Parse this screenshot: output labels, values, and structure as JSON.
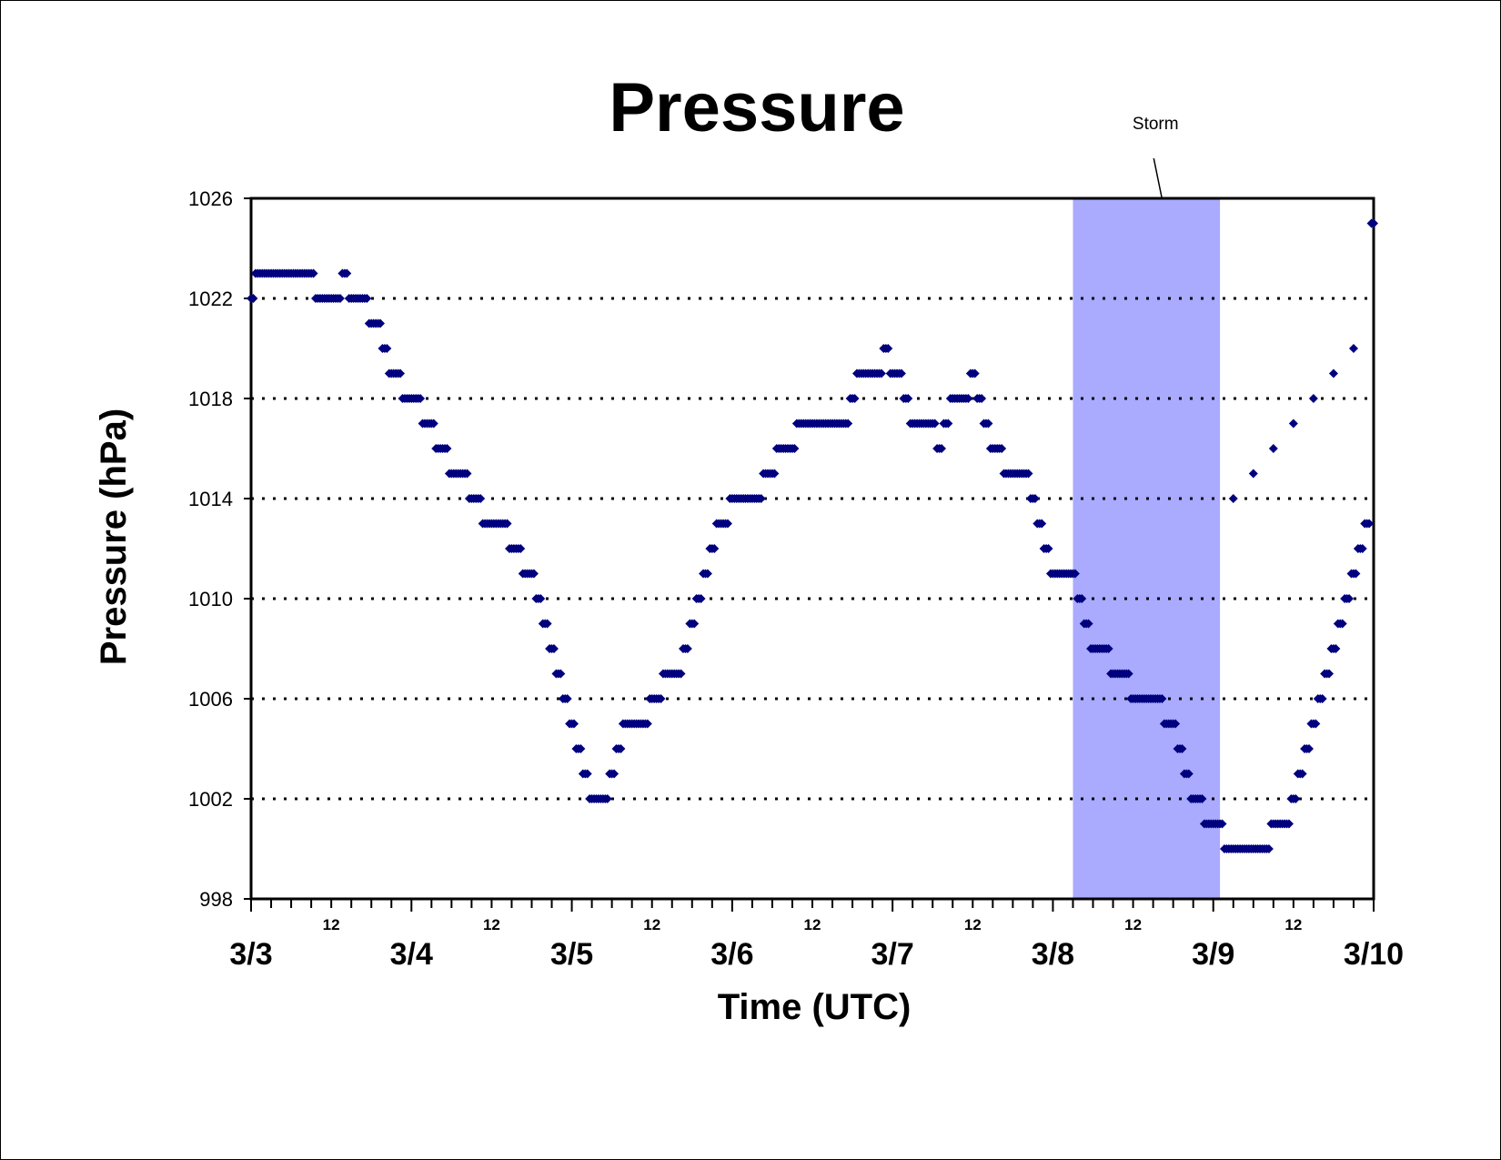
{
  "chart_data": {
    "type": "scatter",
    "title": "Pressure",
    "xlabel": "Time (UTC)",
    "ylabel": "Pressure (hPa)",
    "ylim": [
      998,
      1026
    ],
    "yticks": [
      "998",
      "1002",
      "1006",
      "1010",
      "1014",
      "1018",
      "1022",
      "1026"
    ],
    "xlim": [
      "3/3 00",
      "3/10 00"
    ],
    "day_ticks": [
      "3/3",
      "3/4",
      "3/5",
      "3/6",
      "3/7",
      "3/8",
      "3/9",
      "3/10"
    ],
    "hour_tick_label": "12",
    "grid": "horizontal dotted",
    "annotation": {
      "text": "Storm",
      "span": [
        "3/8 03",
        "3/9 01"
      ]
    },
    "colors": {
      "points": "#00007f",
      "storm_band": "#aaaaff"
    },
    "series": [
      {
        "x": [
          "3/3 00",
          "3/3 01",
          "3/3 02",
          "3/3 03",
          "3/3 04",
          "3/3 05",
          "3/3 06",
          "3/3 07",
          "3/3 08",
          "3/3 09",
          "3/3 10",
          "3/3 11",
          "3/3 12",
          "3/3 13",
          "3/3 14",
          "3/3 15",
          "3/3 16",
          "3/3 17",
          "3/3 18",
          "3/3 19",
          "3/3 20",
          "3/3 21",
          "3/3 22",
          "3/3 23",
          "3/4 00",
          "3/4 01",
          "3/4 02",
          "3/4 03",
          "3/4 04",
          "3/4 05",
          "3/4 06",
          "3/4 07",
          "3/4 08",
          "3/4 09",
          "3/4 10",
          "3/4 11",
          "3/4 12",
          "3/4 13",
          "3/4 14",
          "3/4 15",
          "3/4 16",
          "3/4 17",
          "3/4 18",
          "3/4 19",
          "3/4 20",
          "3/4 21",
          "3/4 22",
          "3/4 23",
          "3/5 00",
          "3/5 01",
          "3/5 02",
          "3/5 03",
          "3/5 04",
          "3/5 05",
          "3/5 06",
          "3/5 07",
          "3/5 08",
          "3/5 09",
          "3/5 10",
          "3/5 11",
          "3/5 12",
          "3/5 13",
          "3/5 14",
          "3/5 15",
          "3/5 16",
          "3/5 17",
          "3/5 18",
          "3/5 19",
          "3/5 20",
          "3/5 21",
          "3/5 22",
          "3/5 23",
          "3/6 00",
          "3/6 01",
          "3/6 02",
          "3/6 03",
          "3/6 04",
          "3/6 05",
          "3/6 06",
          "3/6 07",
          "3/6 08",
          "3/6 09",
          "3/6 10",
          "3/6 11",
          "3/6 12",
          "3/6 13",
          "3/6 14",
          "3/6 15",
          "3/6 16",
          "3/6 17",
          "3/6 18",
          "3/6 19",
          "3/6 20",
          "3/6 21",
          "3/6 22",
          "3/6 23",
          "3/7 00",
          "3/7 01",
          "3/7 02",
          "3/7 03",
          "3/7 04",
          "3/7 05",
          "3/7 06",
          "3/7 07",
          "3/7 08",
          "3/7 09",
          "3/7 10",
          "3/7 11",
          "3/7 12",
          "3/7 13",
          "3/7 14",
          "3/7 15",
          "3/7 16",
          "3/7 17",
          "3/7 18",
          "3/7 19",
          "3/7 20",
          "3/7 21",
          "3/7 22",
          "3/7 23",
          "3/8 00",
          "3/8 01",
          "3/8 02",
          "3/8 03",
          "3/8 04",
          "3/8 05",
          "3/8 06",
          "3/8 07",
          "3/8 08",
          "3/8 09",
          "3/8 10",
          "3/8 11",
          "3/8 12",
          "3/8 13",
          "3/8 14",
          "3/8 15",
          "3/8 16",
          "3/8 17",
          "3/8 18",
          "3/8 19",
          "3/8 20",
          "3/8 21",
          "3/8 22",
          "3/8 23",
          "3/9 00",
          "3/9 01",
          "3/9 02",
          "3/9 03",
          "3/9 04",
          "3/9 05",
          "3/9 06",
          "3/9 07",
          "3/9 08",
          "3/9 09",
          "3/9 10",
          "3/9 11",
          "3/9 12",
          "3/9 13",
          "3/9 14",
          "3/9 15",
          "3/9 16",
          "3/9 17",
          "3/9 18",
          "3/9 19",
          "3/9 20",
          "3/9 21",
          "3/9 22",
          "3/9 23",
          "3/10 00"
        ],
        "y": [
          1022,
          1023,
          1023,
          1023,
          1023,
          1023,
          1023,
          1023,
          1023,
          1023,
          1022,
          1022,
          1022,
          1022,
          1023,
          1022,
          1022,
          1022,
          1021,
          1021,
          1020,
          1019,
          1019,
          1018,
          1018,
          1018,
          1017,
          1017,
          1016,
          1016,
          1015,
          1015,
          1015,
          1014,
          1014,
          1013,
          1013,
          1013,
          1013,
          1012,
          1012,
          1011,
          1011,
          1010,
          1009,
          1008,
          1007,
          1006,
          1005,
          1004,
          1003,
          1002,
          1002,
          1002,
          1003,
          1004,
          1005,
          1005,
          1005,
          1005,
          1006,
          1006,
          1007,
          1007,
          1007,
          1008,
          1009,
          1010,
          1011,
          1012,
          1013,
          1013,
          1014,
          1014,
          1014,
          1014,
          1014,
          1015,
          1015,
          1016,
          1016,
          1016,
          1017,
          1017,
          1017,
          1017,
          1017,
          1017,
          1017,
          1017,
          1018,
          1019,
          1019,
          1019,
          1019,
          1020,
          1019,
          1019,
          1018,
          1017,
          1017,
          1017,
          1017,
          1016,
          1017,
          1018,
          1018,
          1018,
          1019,
          1018,
          1017,
          1016,
          1016,
          1015,
          1015,
          1015,
          1015,
          1014,
          1013,
          1012,
          1011,
          1011,
          1011,
          1011,
          1010,
          1009,
          1008,
          1008,
          1008,
          1007,
          1007,
          1007,
          1006,
          1006,
          1006,
          1006,
          1006,
          1005,
          1005,
          1004,
          1003,
          1002,
          1002,
          1001,
          1001,
          1001,
          1000,
          1000,
          1000,
          1000,
          1000,
          1000,
          1000,
          1001,
          1001,
          1001,
          1002,
          1003,
          1004,
          1005,
          1006,
          1007,
          1008,
          1009,
          1010,
          1011,
          1012,
          1013,
          1025
        ]
      }
    ]
  }
}
